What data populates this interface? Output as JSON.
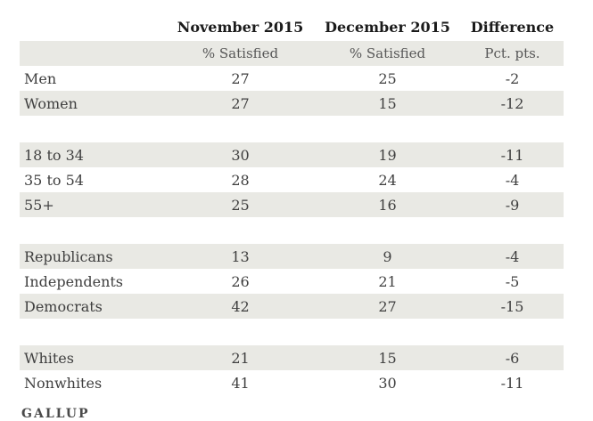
{
  "colors": {
    "band": "#e9e9e4",
    "header-text": "#1b1b1b",
    "body-text": "#3f3f3f",
    "subheader-text": "#575757"
  },
  "brand": {
    "label": "GALLUP"
  },
  "chart_data": {
    "type": "table",
    "columns": [
      "November 2015",
      "December 2015",
      "Difference"
    ],
    "units_row": [
      "% Satisfied",
      "% Satisfied",
      "Pct. pts."
    ],
    "row_groups": [
      {
        "name": "gender",
        "rows": [
          {
            "label": "Men",
            "values": [
              27,
              25,
              -2
            ]
          },
          {
            "label": "Women",
            "values": [
              27,
              15,
              -12
            ]
          }
        ]
      },
      {
        "name": "age",
        "rows": [
          {
            "label": "18 to 34",
            "values": [
              30,
              19,
              -11
            ]
          },
          {
            "label": "35 to 54",
            "values": [
              28,
              24,
              -4
            ]
          },
          {
            "label": "55+",
            "values": [
              25,
              16,
              -9
            ]
          }
        ]
      },
      {
        "name": "party",
        "rows": [
          {
            "label": "Republicans",
            "values": [
              13,
              9,
              -4
            ]
          },
          {
            "label": "Independents",
            "values": [
              26,
              21,
              -5
            ]
          },
          {
            "label": "Democrats",
            "values": [
              42,
              27,
              -15
            ]
          }
        ]
      },
      {
        "name": "race",
        "rows": [
          {
            "label": "Whites",
            "values": [
              21,
              15,
              -6
            ]
          },
          {
            "label": "Nonwhites",
            "values": [
              41,
              30,
              -11
            ]
          }
        ]
      }
    ]
  }
}
